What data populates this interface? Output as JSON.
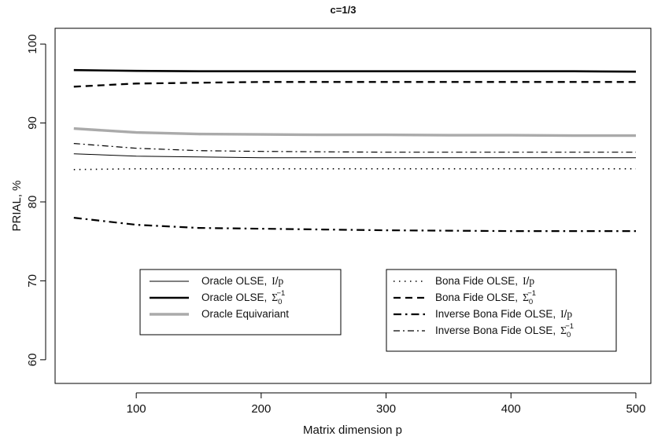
{
  "chart_data": {
    "type": "line",
    "title": "c=1/3",
    "xlabel": "Matrix dimension p",
    "ylabel": "PRIAL, %",
    "xlim": [
      35,
      512
    ],
    "ylim": [
      57,
      102
    ],
    "x_ticks": [
      "100",
      "200",
      "300",
      "400",
      "500"
    ],
    "y_ticks": [
      "60",
      "70",
      "80",
      "90",
      "100"
    ],
    "grid": false,
    "x": [
      50,
      100,
      150,
      200,
      250,
      300,
      350,
      400,
      450,
      500
    ],
    "series": [
      {
        "name": "Oracle OLSE, I/p",
        "style": "solid-thin",
        "color": "#000000",
        "values": [
          86.1,
          85.8,
          85.7,
          85.6,
          85.6,
          85.6,
          85.6,
          85.6,
          85.6,
          85.6
        ]
      },
      {
        "name": "Oracle OLSE, Σ0^-1",
        "style": "solid-thick",
        "color": "#000000",
        "values": [
          96.7,
          96.6,
          96.55,
          96.55,
          96.55,
          96.55,
          96.55,
          96.55,
          96.55,
          96.5
        ]
      },
      {
        "name": "Oracle Equivariant",
        "style": "solid-gray",
        "color": "#aaaaaa",
        "values": [
          89.3,
          88.8,
          88.6,
          88.55,
          88.5,
          88.5,
          88.45,
          88.45,
          88.4,
          88.4
        ]
      },
      {
        "name": "Bona Fide OLSE, I/p",
        "style": "dotted",
        "color": "#000000",
        "values": [
          84.1,
          84.2,
          84.2,
          84.2,
          84.2,
          84.2,
          84.2,
          84.2,
          84.2,
          84.2
        ]
      },
      {
        "name": "Bona Fide OLSE, Σ0^-1",
        "style": "dashed",
        "color": "#000000",
        "values": [
          94.6,
          95.0,
          95.1,
          95.2,
          95.2,
          95.2,
          95.2,
          95.2,
          95.2,
          95.2
        ]
      },
      {
        "name": "Inverse Bona Fide OLSE, I/p",
        "style": "dashdot-thick",
        "color": "#000000",
        "values": [
          78.0,
          77.1,
          76.7,
          76.6,
          76.5,
          76.4,
          76.35,
          76.3,
          76.3,
          76.3
        ]
      },
      {
        "name": "Inverse Bona Fide OLSE, Σ0^-1",
        "style": "dashdot-thin",
        "color": "#000000",
        "values": [
          87.4,
          86.8,
          86.5,
          86.4,
          86.35,
          86.3,
          86.3,
          86.3,
          86.3,
          86.3
        ]
      }
    ],
    "legends": [
      {
        "placement": "bottom-left",
        "series_index": [
          0,
          1,
          2
        ],
        "labels": [
          {
            "text": "Oracle OLSE,",
            "sym": "I",
            "sep": "/",
            "sym2": "p"
          },
          {
            "text": "Oracle OLSE,",
            "sym": "Σ",
            "sub": "0",
            "sup": "−1"
          },
          {
            "text": "Oracle Equivariant"
          }
        ]
      },
      {
        "placement": "bottom-right",
        "series_index": [
          3,
          4,
          5,
          6
        ],
        "labels": [
          {
            "text": "Bona Fide OLSE,",
            "sym": "I",
            "sep": "/",
            "sym2": "p"
          },
          {
            "text": "Bona Fide OLSE,",
            "sym": "Σ",
            "sub": "0",
            "sup": "−1"
          },
          {
            "text": "Inverse Bona Fide OLSE,",
            "sym": "I",
            "sep": "/",
            "sym2": "p"
          },
          {
            "text": "Inverse Bona Fide OLSE,",
            "sym": "Σ",
            "sub": "0",
            "sup": "−1"
          }
        ]
      }
    ]
  }
}
